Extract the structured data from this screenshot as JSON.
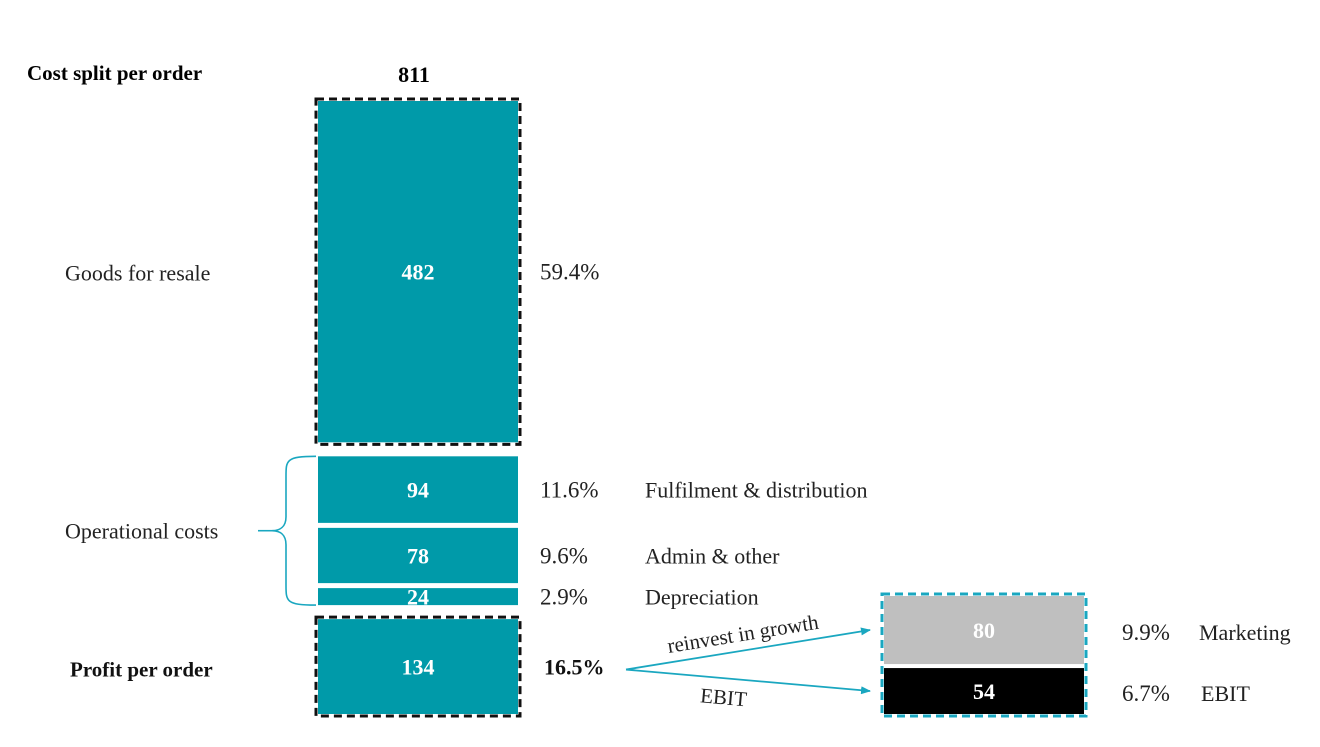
{
  "chart_data": {
    "type": "bar",
    "title": "Cost split per order",
    "total": 811,
    "main_stack": [
      {
        "label": "Goods for resale",
        "value": 482,
        "pct": "59.4%",
        "group": "goods"
      },
      {
        "label": "Fulfilment & distribution",
        "value": 94,
        "pct": "11.6%",
        "group": "operational"
      },
      {
        "label": "Admin & other",
        "value": 78,
        "pct": "9.6%",
        "group": "operational"
      },
      {
        "label": "Depreciation",
        "value": 24,
        "pct": "2.9%",
        "group": "operational"
      },
      {
        "label": "Profit per order",
        "value": 134,
        "pct": "16.5%",
        "group": "profit"
      }
    ],
    "group_labels": {
      "goods": "Goods for resale",
      "operational": "Operational costs",
      "profit": "Profit per order"
    },
    "profit_split": [
      {
        "label": "Marketing",
        "value": 80,
        "pct": "9.9%",
        "arrow_label": "reinvest in growth",
        "color": "#bfbfbf"
      },
      {
        "label": "EBIT",
        "value": 54,
        "pct": "6.7%",
        "arrow_label": "EBIT",
        "color": "#000000"
      }
    ],
    "colors": {
      "main": "#009aa9",
      "accent": "#1aa7c0",
      "marketing": "#bfbfbf",
      "ebit": "#000000"
    }
  }
}
